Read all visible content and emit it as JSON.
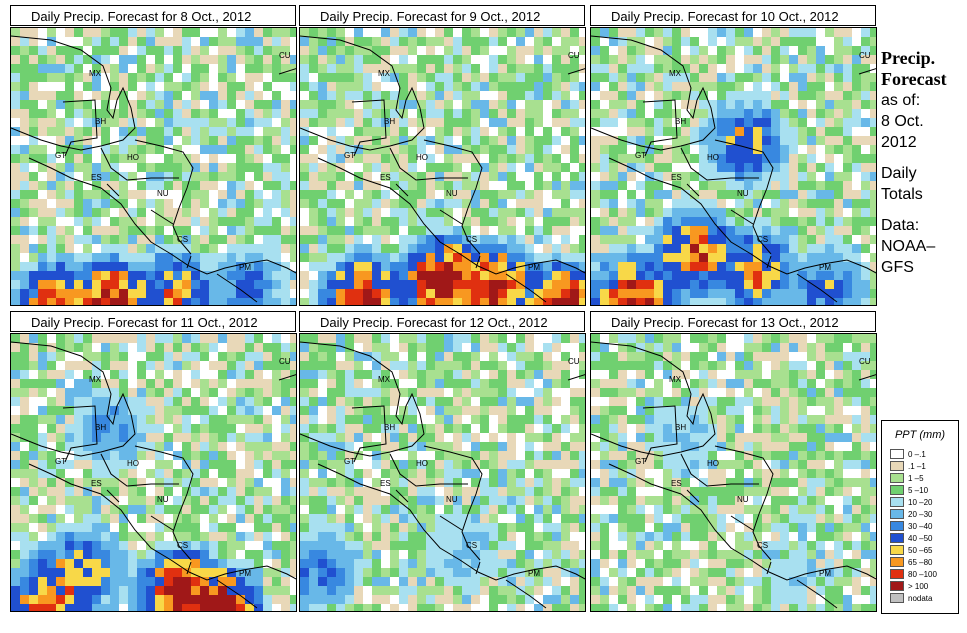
{
  "panels": [
    {
      "title": "Daily Precip. Forecast for  8 Oct., 2012",
      "rain": [
        [
          40,
          275,
          0.8
        ],
        [
          95,
          270,
          0.9
        ],
        [
          160,
          262,
          0.6
        ],
        [
          230,
          258,
          0.4
        ]
      ]
    },
    {
      "title": "Daily Precip. Forecast for  9 Oct., 2012",
      "rain": [
        [
          60,
          266,
          0.8
        ],
        [
          140,
          250,
          1
        ],
        [
          190,
          255,
          0.9
        ],
        [
          260,
          275,
          1
        ]
      ]
    },
    {
      "title": "Daily Precip. Forecast for  10 Oct., 2012",
      "rain": [
        [
          40,
          265,
          0.8
        ],
        [
          100,
          220,
          0.7
        ],
        [
          160,
          240,
          0.6
        ],
        [
          150,
          110,
          0.5
        ],
        [
          230,
          255,
          0.4
        ]
      ]
    },
    {
      "title": "Daily Precip. Forecast for  11 Oct., 2012",
      "rain": [
        [
          50,
          245,
          0.6
        ],
        [
          70,
          230,
          0.5
        ],
        [
          165,
          255,
          0.9
        ],
        [
          200,
          272,
          1
        ],
        [
          30,
          270,
          0.7
        ],
        [
          95,
          90,
          0.3
        ]
      ]
    },
    {
      "title": "Daily Precip. Forecast for  12 Oct., 2012",
      "rain": [
        [
          15,
          230,
          0.35
        ],
        [
          160,
          215,
          0.2
        ]
      ]
    },
    {
      "title": "Daily Precip. Forecast for  13 Oct., 2012",
      "rain": [
        [
          90,
          100,
          0.2
        ],
        [
          200,
          240,
          0.15
        ]
      ]
    }
  ],
  "map_labels": [
    {
      "text": "MX",
      "x": 78,
      "y": 48
    },
    {
      "text": "BH",
      "x": 84,
      "y": 96
    },
    {
      "text": "GT",
      "x": 44,
      "y": 130
    },
    {
      "text": "HO",
      "x": 116,
      "y": 132
    },
    {
      "text": "ES",
      "x": 80,
      "y": 152
    },
    {
      "text": "NU",
      "x": 146,
      "y": 168
    },
    {
      "text": "CS",
      "x": 166,
      "y": 214
    },
    {
      "text": "PM",
      "x": 228,
      "y": 242
    },
    {
      "text": "CU",
      "x": 268,
      "y": 30
    }
  ],
  "side": {
    "title_line1": "Precip.",
    "title_line2": "Forecast",
    "line1": "as of:",
    "line2": "8 Oct.",
    "line3": "2012",
    "line4": "Daily",
    "line5": "Totals",
    "line6": "Data:",
    "line7": "NOAA–",
    "line8": "GFS"
  },
  "legend": {
    "title": "PPT (mm)",
    "items": [
      {
        "label": "0 –.1",
        "color": "#ffffff"
      },
      {
        "label": ".1 –1",
        "color": "#e8d8b8"
      },
      {
        "label": "1 –5",
        "color": "#a8e090"
      },
      {
        "label": "5 –10",
        "color": "#70d070"
      },
      {
        "label": "10 –20",
        "color": "#a8e0f0"
      },
      {
        "label": "20 –30",
        "color": "#68b8e8"
      },
      {
        "label": "30 –40",
        "color": "#3888e0"
      },
      {
        "label": "40 –50",
        "color": "#2050d0"
      },
      {
        "label": "50 –65",
        "color": "#f8d848"
      },
      {
        "label": "65 –80",
        "color": "#f89820"
      },
      {
        "label": "80 –100",
        "color": "#e03010"
      },
      {
        "label": "> 100",
        "color": "#a01818"
      },
      {
        "label": "nodata",
        "color": "#c0c0c0"
      }
    ]
  }
}
